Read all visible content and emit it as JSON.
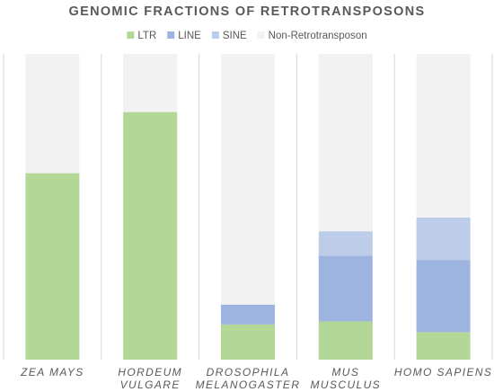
{
  "chart_data": {
    "type": "bar",
    "stacked": true,
    "normalized": true,
    "title": "GENOMIC FRACTIONS OF RETROTRANSPOSONS",
    "xlabel": "",
    "ylabel": "",
    "ylim": [
      0,
      1
    ],
    "grid": false,
    "legend_position": "top",
    "categories": [
      [
        "ZEA MAYS"
      ],
      [
        "HORDEUM",
        "VULGARE"
      ],
      [
        "DROSOPHILA",
        "MELANOGASTER"
      ],
      [
        "MUS",
        "MUSCULUS"
      ],
      [
        "HOMO SAPIENS"
      ]
    ],
    "series": [
      {
        "name": "LTR",
        "color": "#b3d796",
        "values": [
          0.61,
          0.81,
          0.115,
          0.125,
          0.09
        ]
      },
      {
        "name": "LINE",
        "color": "#9db4e1",
        "values": [
          0.0,
          0.0,
          0.065,
          0.215,
          0.235
        ]
      },
      {
        "name": "SINE",
        "color": "#bccce9",
        "values": [
          0.0,
          0.0,
          0.0,
          0.08,
          0.14
        ]
      },
      {
        "name": "Non-Retrotransposon",
        "color": "#f2f2f2",
        "values": [
          0.39,
          0.19,
          0.82,
          0.58,
          0.535
        ]
      }
    ]
  }
}
